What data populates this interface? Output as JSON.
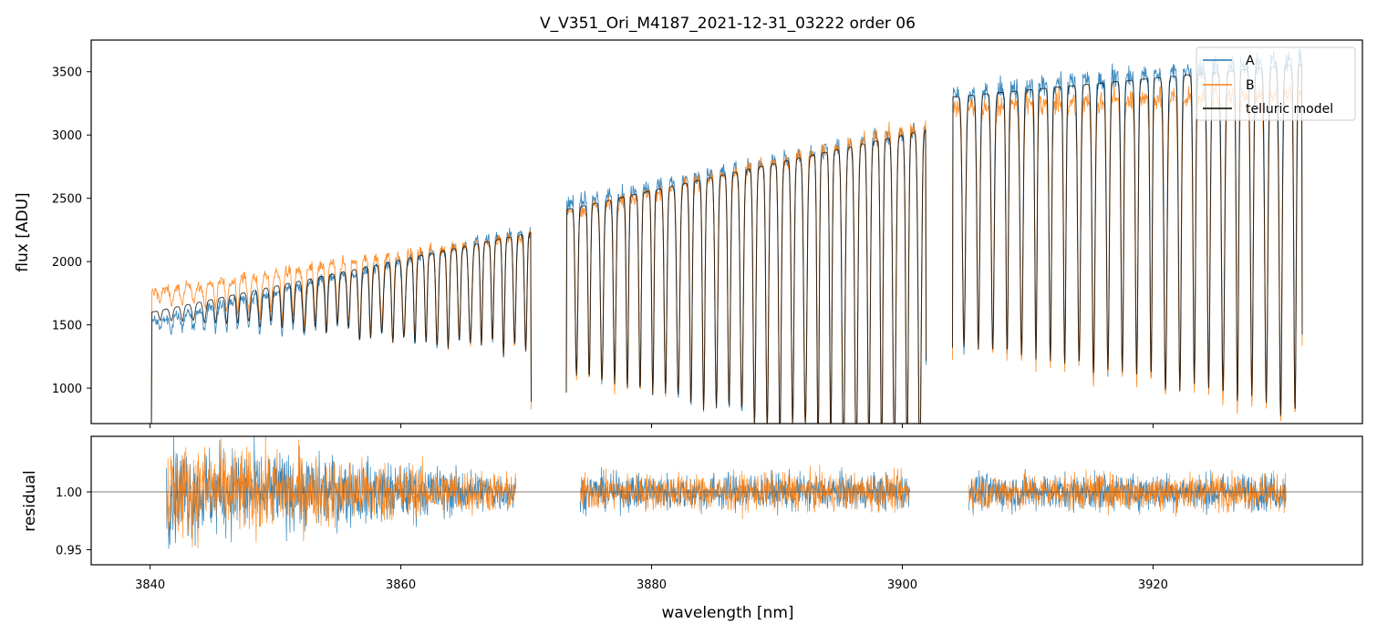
{
  "chart_data": [
    {
      "type": "line",
      "title": "V_V351_Ori_M4187_2021-12-31_03222  order 06",
      "xlabel": "",
      "ylabel": "flux [ADU]",
      "xlim": [
        3835.3,
        3936.7
      ],
      "ylim": [
        720,
        3750
      ],
      "yticks": [
        1000,
        1500,
        2000,
        2500,
        3000,
        3500
      ],
      "xticks": [
        3840,
        3860,
        3880,
        3900,
        3920
      ],
      "legend": {
        "position": "top-right",
        "entries": [
          "A",
          "B",
          "telluric model"
        ]
      },
      "segments": [
        {
          "x_start": 3840.1,
          "x_end": 3870.4,
          "a_start": 1520,
          "a_end": 2260,
          "b_start": 1760,
          "b_end": 2210,
          "model_start": 1600,
          "model_end": 2230,
          "line_count": 34,
          "min_depth": 0.05,
          "max_depth": 0.5
        },
        {
          "x_start": 3873.2,
          "x_end": 3901.9,
          "a_start": 2450,
          "a_end": 3060,
          "b_start": 2380,
          "b_end": 3080,
          "model_start": 2410,
          "model_end": 3040,
          "line_count": 28,
          "min_depth": 0.55,
          "max_depth": 0.95
        },
        {
          "x_start": 3904.0,
          "x_end": 3931.9,
          "a_start": 3320,
          "a_end": 3620,
          "b_start": 3220,
          "b_end": 3340,
          "model_start": 3300,
          "model_end": 3560,
          "line_count": 24,
          "min_depth": 0.6,
          "max_depth": 0.8
        }
      ],
      "series": [
        {
          "name": "A",
          "color": "#1f77b4"
        },
        {
          "name": "B",
          "color": "#ff7f0e"
        },
        {
          "name": "telluric model",
          "color": "#000000"
        }
      ]
    },
    {
      "type": "line",
      "title": "",
      "xlabel": "wavelength [nm]",
      "ylabel": "residual",
      "xlim": [
        3835.3,
        3936.7
      ],
      "ylim": [
        0.937,
        1.048
      ],
      "yticks": [
        0.95,
        1.0
      ],
      "ytick_labels": [
        "0.95",
        "1.00"
      ],
      "xticks": [
        3840,
        3860,
        3880,
        3900,
        3920
      ],
      "reference_line": 1.0,
      "segments": [
        {
          "x_start": 3841.3,
          "x_end": 3869.2,
          "noise_start": 0.04,
          "noise_end": 0.015
        },
        {
          "x_start": 3874.3,
          "x_end": 3900.6,
          "noise_start": 0.015,
          "noise_end": 0.015
        },
        {
          "x_start": 3905.3,
          "x_end": 3930.6,
          "noise_start": 0.015,
          "noise_end": 0.015
        }
      ],
      "series": [
        {
          "name": "A",
          "color": "#1f77b4"
        },
        {
          "name": "B",
          "color": "#ff7f0e"
        }
      ]
    }
  ]
}
